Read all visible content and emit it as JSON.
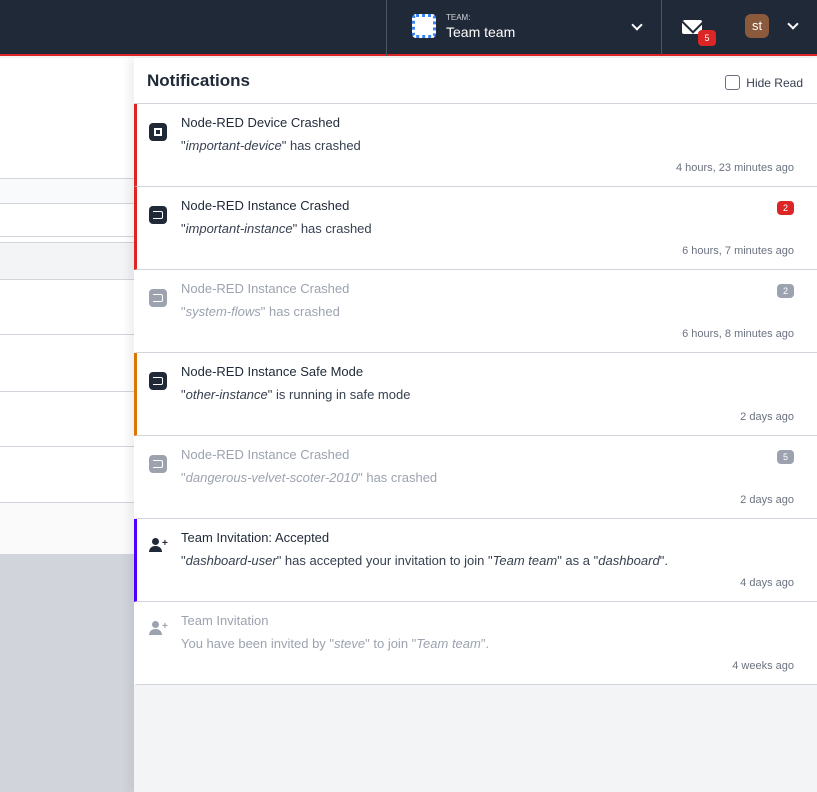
{
  "header": {
    "team_label": "TEAM:",
    "team_name": "Team team",
    "mail_count": "5",
    "avatar_initials": "st"
  },
  "notifications": {
    "title": "Notifications",
    "hide_read_label": "Hide Read",
    "hide_read_checked": false,
    "items": [
      {
        "icon": "device-chip-icon",
        "title": "Node-RED Device Crashed",
        "q1": "important-device",
        "rest": " has crashed",
        "time": "4 hours, 23 minutes ago",
        "count": "",
        "read": false,
        "accent": "#dc2626"
      },
      {
        "icon": "instance-flow-icon",
        "title": "Node-RED Instance Crashed",
        "q1": "important-instance",
        "rest": " has crashed",
        "time": "6 hours, 7 minutes ago",
        "count": "2",
        "read": false,
        "accent": "#dc2626"
      },
      {
        "icon": "instance-flow-icon",
        "title": "Node-RED Instance Crashed",
        "q1": "system-flows",
        "rest": " has crashed",
        "time": "6 hours, 8 minutes ago",
        "count": "2",
        "read": true,
        "accent": ""
      },
      {
        "icon": "instance-flow-icon",
        "title": "Node-RED Instance Safe Mode",
        "q1": "other-instance",
        "rest": " is running in safe mode",
        "time": "2 days ago",
        "count": "",
        "read": false,
        "accent": "#d97706"
      },
      {
        "icon": "instance-flow-icon",
        "title": "Node-RED Instance Crashed",
        "q1": "dangerous-velvet-scoter-2010",
        "rest": " has crashed",
        "time": "2 days ago",
        "count": "5",
        "read": true,
        "accent": ""
      },
      {
        "icon": "user-add-icon",
        "title": "Team Invitation: Accepted",
        "q1": "dashboard-user",
        "rest": " has accepted your invitation to join ",
        "q2": "Team team",
        "rest2": " as a ",
        "q3": "dashboard",
        "rest3": ".",
        "time": "4 days ago",
        "count": "",
        "read": false,
        "accent": "#4f00ff"
      },
      {
        "icon": "user-add-icon",
        "title": "Team Invitation",
        "pre": "You have been invited by ",
        "q1": "steve",
        "rest": " to join ",
        "q2": "Team team",
        "rest2": ".",
        "time": "4 weeks ago",
        "count": "",
        "read": true,
        "accent": ""
      }
    ]
  }
}
